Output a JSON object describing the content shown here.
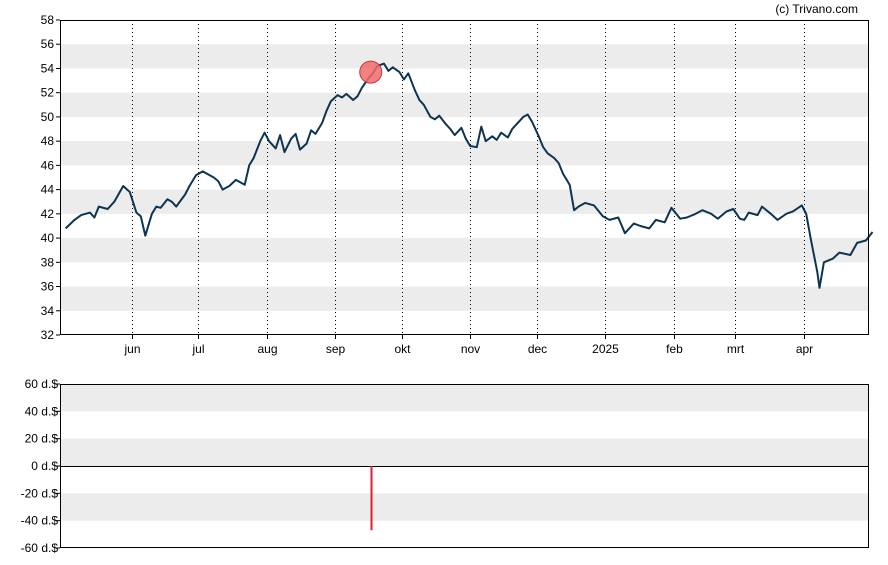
{
  "watermark": "(c) Trivano.com",
  "chart_data": [
    {
      "type": "line",
      "title": "",
      "xlabel": "",
      "ylabel": "",
      "ylim": [
        32,
        58
      ],
      "yticks": [
        32,
        34,
        36,
        38,
        40,
        42,
        44,
        46,
        48,
        50,
        52,
        54,
        56,
        58
      ],
      "xticks": [
        {
          "label": "jun",
          "date": "2024-06-01"
        },
        {
          "label": "jul",
          "date": "2024-07-01"
        },
        {
          "label": "aug",
          "date": "2024-08-01"
        },
        {
          "label": "sep",
          "date": "2024-09-01"
        },
        {
          "label": "okt",
          "date": "2024-10-01"
        },
        {
          "label": "nov",
          "date": "2024-11-01"
        },
        {
          "label": "dec",
          "date": "2024-12-01"
        },
        {
          "label": "2025",
          "date": "2025-01-01"
        },
        {
          "label": "feb",
          "date": "2025-02-01"
        },
        {
          "label": "mrt",
          "date": "2025-03-01"
        },
        {
          "label": "apr",
          "date": "2025-04-01"
        }
      ],
      "grid": "alternating horizontal bands, dotted vertical month lines",
      "series": [
        {
          "color": "#0d3552",
          "points": [
            [
              "2024-05-02",
              40.8
            ],
            [
              "2024-05-06",
              41.5
            ],
            [
              "2024-05-09",
              41.9
            ],
            [
              "2024-05-13",
              42.1
            ],
            [
              "2024-05-15",
              41.7
            ],
            [
              "2024-05-17",
              42.6
            ],
            [
              "2024-05-21",
              42.4
            ],
            [
              "2024-05-24",
              43.0
            ],
            [
              "2024-05-28",
              44.3
            ],
            [
              "2024-05-31",
              43.8
            ],
            [
              "2024-06-03",
              42.1
            ],
            [
              "2024-06-05",
              41.8
            ],
            [
              "2024-06-07",
              40.2
            ],
            [
              "2024-06-10",
              42.0
            ],
            [
              "2024-06-12",
              42.6
            ],
            [
              "2024-06-14",
              42.5
            ],
            [
              "2024-06-17",
              43.2
            ],
            [
              "2024-06-19",
              43.0
            ],
            [
              "2024-06-21",
              42.6
            ],
            [
              "2024-06-25",
              43.6
            ],
            [
              "2024-06-27",
              44.3
            ],
            [
              "2024-06-30",
              45.2
            ],
            [
              "2024-07-03",
              45.5
            ],
            [
              "2024-07-05",
              45.3
            ],
            [
              "2024-07-08",
              45.0
            ],
            [
              "2024-07-10",
              44.7
            ],
            [
              "2024-07-12",
              44.0
            ],
            [
              "2024-07-15",
              44.3
            ],
            [
              "2024-07-18",
              44.8
            ],
            [
              "2024-07-22",
              44.4
            ],
            [
              "2024-07-24",
              46.0
            ],
            [
              "2024-07-26",
              46.6
            ],
            [
              "2024-07-29",
              48.0
            ],
            [
              "2024-07-31",
              48.7
            ],
            [
              "2024-08-02",
              48.0
            ],
            [
              "2024-08-05",
              47.4
            ],
            [
              "2024-08-07",
              48.5
            ],
            [
              "2024-08-09",
              47.1
            ],
            [
              "2024-08-12",
              48.2
            ],
            [
              "2024-08-14",
              48.6
            ],
            [
              "2024-08-16",
              47.3
            ],
            [
              "2024-08-19",
              47.8
            ],
            [
              "2024-08-21",
              48.9
            ],
            [
              "2024-08-23",
              48.6
            ],
            [
              "2024-08-26",
              49.5
            ],
            [
              "2024-08-28",
              50.5
            ],
            [
              "2024-08-30",
              51.3
            ],
            [
              "2024-09-02",
              51.8
            ],
            [
              "2024-09-04",
              51.6
            ],
            [
              "2024-09-06",
              51.9
            ],
            [
              "2024-09-09",
              51.4
            ],
            [
              "2024-09-11",
              51.7
            ],
            [
              "2024-09-13",
              52.4
            ],
            [
              "2024-09-16",
              53.2
            ],
            [
              "2024-09-18",
              53.6
            ],
            [
              "2024-09-20",
              54.2
            ],
            [
              "2024-09-23",
              54.4
            ],
            [
              "2024-09-25",
              53.8
            ],
            [
              "2024-09-27",
              54.1
            ],
            [
              "2024-09-30",
              53.7
            ],
            [
              "2024-10-02",
              53.1
            ],
            [
              "2024-10-04",
              53.6
            ],
            [
              "2024-10-07",
              52.2
            ],
            [
              "2024-10-09",
              51.4
            ],
            [
              "2024-10-11",
              51.0
            ],
            [
              "2024-10-14",
              50.0
            ],
            [
              "2024-10-16",
              49.8
            ],
            [
              "2024-10-18",
              50.1
            ],
            [
              "2024-10-21",
              49.4
            ],
            [
              "2024-10-23",
              49.0
            ],
            [
              "2024-10-25",
              48.5
            ],
            [
              "2024-10-28",
              49.1
            ],
            [
              "2024-10-30",
              48.2
            ],
            [
              "2024-11-01",
              47.6
            ],
            [
              "2024-11-04",
              47.5
            ],
            [
              "2024-11-06",
              49.2
            ],
            [
              "2024-11-08",
              48.0
            ],
            [
              "2024-11-11",
              48.4
            ],
            [
              "2024-11-13",
              48.1
            ],
            [
              "2024-11-15",
              48.7
            ],
            [
              "2024-11-18",
              48.3
            ],
            [
              "2024-11-20",
              49.0
            ],
            [
              "2024-11-22",
              49.4
            ],
            [
              "2024-11-25",
              50.0
            ],
            [
              "2024-11-27",
              50.2
            ],
            [
              "2024-11-29",
              49.6
            ],
            [
              "2024-12-02",
              48.4
            ],
            [
              "2024-12-04",
              47.5
            ],
            [
              "2024-12-06",
              47.0
            ],
            [
              "2024-12-09",
              46.6
            ],
            [
              "2024-12-11",
              46.2
            ],
            [
              "2024-12-13",
              45.3
            ],
            [
              "2024-12-16",
              44.4
            ],
            [
              "2024-12-18",
              42.3
            ],
            [
              "2024-12-20",
              42.6
            ],
            [
              "2024-12-23",
              42.9
            ],
            [
              "2024-12-27",
              42.7
            ],
            [
              "2024-12-31",
              41.8
            ],
            [
              "2025-01-03",
              41.5
            ],
            [
              "2025-01-07",
              41.7
            ],
            [
              "2025-01-10",
              40.4
            ],
            [
              "2025-01-14",
              41.2
            ],
            [
              "2025-01-17",
              41.0
            ],
            [
              "2025-01-21",
              40.8
            ],
            [
              "2025-01-24",
              41.5
            ],
            [
              "2025-01-28",
              41.3
            ],
            [
              "2025-01-31",
              42.5
            ],
            [
              "2025-02-04",
              41.6
            ],
            [
              "2025-02-07",
              41.7
            ],
            [
              "2025-02-11",
              42.0
            ],
            [
              "2025-02-14",
              42.3
            ],
            [
              "2025-02-18",
              42.0
            ],
            [
              "2025-02-21",
              41.6
            ],
            [
              "2025-02-25",
              42.2
            ],
            [
              "2025-02-28",
              42.4
            ],
            [
              "2025-03-03",
              41.6
            ],
            [
              "2025-03-05",
              41.5
            ],
            [
              "2025-03-07",
              42.1
            ],
            [
              "2025-03-11",
              41.9
            ],
            [
              "2025-03-13",
              42.6
            ],
            [
              "2025-03-17",
              42.0
            ],
            [
              "2025-03-20",
              41.5
            ],
            [
              "2025-03-24",
              42.0
            ],
            [
              "2025-03-27",
              42.2
            ],
            [
              "2025-03-31",
              42.7
            ],
            [
              "2025-04-02",
              42.0
            ],
            [
              "2025-04-04",
              40.0
            ],
            [
              "2025-04-07",
              37.2
            ],
            [
              "2025-04-08",
              35.9
            ],
            [
              "2025-04-10",
              38.0
            ],
            [
              "2025-04-14",
              38.3
            ],
            [
              "2025-04-17",
              38.8
            ],
            [
              "2025-04-22",
              38.6
            ],
            [
              "2025-04-25",
              39.6
            ],
            [
              "2025-04-29",
              39.8
            ],
            [
              "2025-05-02",
              40.5
            ]
          ]
        }
      ],
      "markers": [
        {
          "date": "2024-09-17",
          "value": 53.7,
          "color": "#f26b6b"
        }
      ]
    },
    {
      "type": "bar",
      "title": "",
      "xlabel": "",
      "ylabel": "",
      "ylim": [
        -60,
        60
      ],
      "yticks": [
        {
          "value": 60,
          "label": "60 d.$"
        },
        {
          "value": 40,
          "label": "40 d.$"
        },
        {
          "value": 20,
          "label": "20 d.$"
        },
        {
          "value": 0,
          "label": "0 d.$"
        },
        {
          "value": -20,
          "label": "-20 d.$"
        },
        {
          "value": -40,
          "label": "-40 d.$"
        },
        {
          "value": -60,
          "label": "-60 d.$"
        }
      ],
      "bars": [
        {
          "date": "2024-09-17",
          "value": -47,
          "color": "#e0202c"
        }
      ]
    }
  ]
}
